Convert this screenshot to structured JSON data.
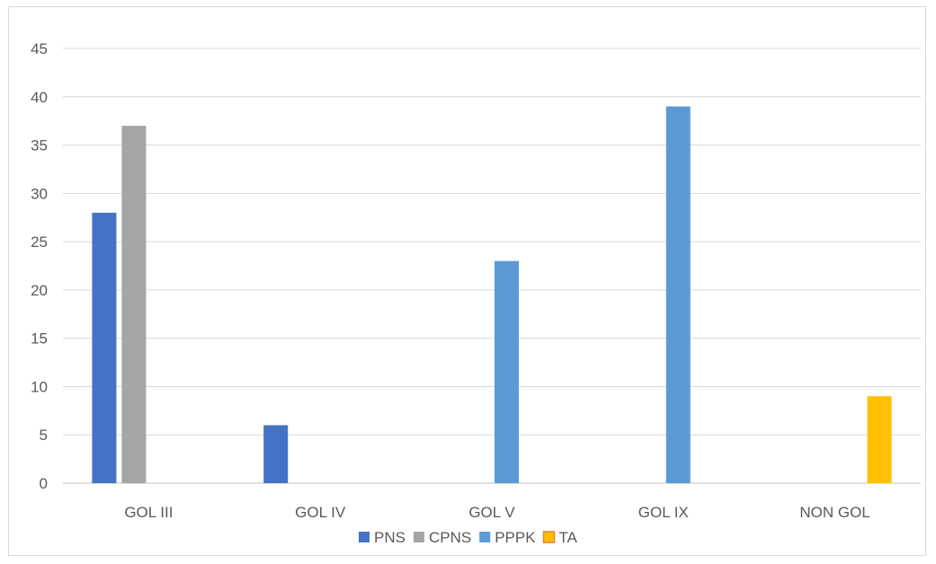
{
  "chart_data": {
    "type": "bar",
    "title": "",
    "xlabel": "",
    "ylabel": "",
    "categories": [
      "GOL III",
      "GOL IV",
      "GOL V",
      "GOL IX",
      "NON GOL"
    ],
    "series": [
      {
        "name": "PNS",
        "color": "#4472c4",
        "values": [
          28,
          6,
          null,
          null,
          null
        ]
      },
      {
        "name": "CPNS",
        "color": "#a5a5a5",
        "values": [
          37,
          null,
          null,
          null,
          null
        ]
      },
      {
        "name": "PPPK",
        "color": "#5b9bd5",
        "values": [
          null,
          null,
          23,
          39,
          null
        ]
      },
      {
        "name": "TA",
        "color": "#ffc000",
        "values": [
          null,
          null,
          null,
          null,
          9
        ]
      }
    ],
    "ylim": [
      0,
      45
    ],
    "yticks": [
      "0",
      "5",
      "10",
      "15",
      "20",
      "25",
      "30",
      "35",
      "40",
      "45"
    ],
    "grid": true,
    "legend_position": "bottom"
  }
}
